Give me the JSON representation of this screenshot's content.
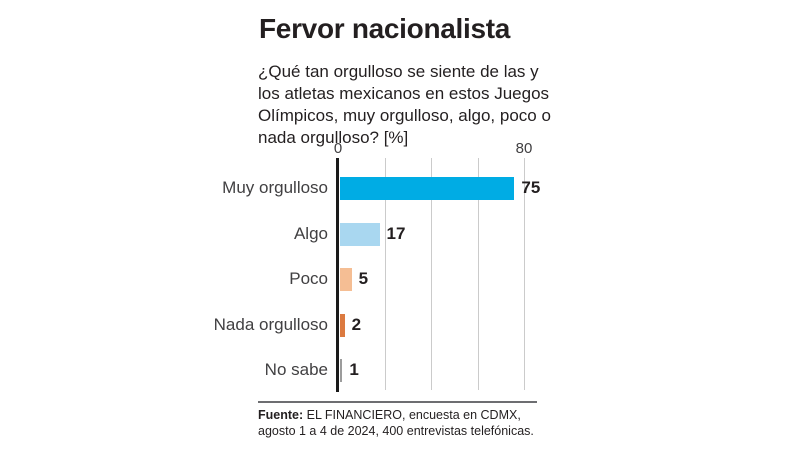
{
  "title": "Fervor nacionalista",
  "subtitle": "¿Qué tan orgulloso se siente de las y los atletas mexicanos en estos Juegos Olímpicos, muy orgulloso, algo, poco o nada orgulloso? [%]",
  "source": {
    "label": "Fuente:",
    "text": " EL FINANCIERO, encuesta en CDMX, agosto 1 a 4 de 2024, 400 entrevistas telefónicas."
  },
  "chart_data": {
    "type": "bar",
    "orientation": "horizontal",
    "title": "Fervor nacionalista",
    "categories": [
      "Muy orgulloso",
      "Algo",
      "Poco",
      "Nada orgulloso",
      "No sabe"
    ],
    "values": [
      75,
      17,
      5,
      2,
      1
    ],
    "colors": [
      "#00ACE4",
      "#A9D7F0",
      "#F5BE94",
      "#DC7A40",
      "#9C9C9C"
    ],
    "axis": {
      "min": 0,
      "max": 80,
      "tick_labels": [
        "0",
        "80"
      ],
      "gridlines": [
        20,
        40,
        60,
        80
      ]
    },
    "grid": true,
    "legend": false
  }
}
